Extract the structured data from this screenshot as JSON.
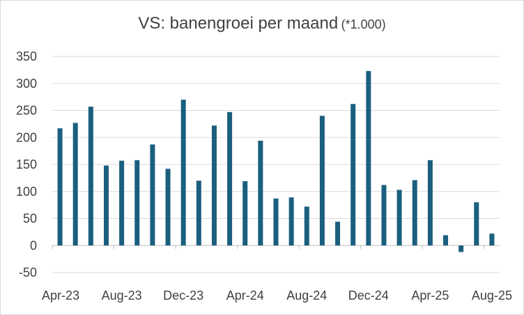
{
  "chart_data": {
    "type": "bar",
    "title": "VS: banengroei per maand",
    "subtitle": "(*1.000)",
    "xlabel": "",
    "ylabel": "",
    "ylim": [
      -50,
      350
    ],
    "yticks": [
      -50,
      0,
      50,
      100,
      150,
      200,
      250,
      300,
      350
    ],
    "grid": true,
    "legend": "none",
    "bar_color": "#1b5f7e",
    "categories": [
      "Apr-23",
      "May-23",
      "Jun-23",
      "Jul-23",
      "Aug-23",
      "Sep-23",
      "Oct-23",
      "Nov-23",
      "Dec-23",
      "Jan-24",
      "Feb-24",
      "Mar-24",
      "Apr-24",
      "May-24",
      "Jun-24",
      "Jul-24",
      "Aug-24",
      "Sep-24",
      "Oct-24",
      "Nov-24",
      "Dec-24",
      "Jan-25",
      "Feb-25",
      "Mar-25",
      "Apr-25",
      "May-25",
      "Jun-25",
      "Jul-25",
      "Aug-25"
    ],
    "tick_labels": [
      "Apr-23",
      "Aug-23",
      "Dec-23",
      "Apr-24",
      "Aug-24",
      "Dec-24",
      "Apr-25",
      "Aug-25"
    ],
    "values": [
      217,
      227,
      257,
      148,
      157,
      158,
      187,
      142,
      270,
      120,
      222,
      247,
      119,
      194,
      87,
      89,
      72,
      240,
      44,
      262,
      323,
      112,
      103,
      121,
      158,
      19,
      -12,
      80,
      22
    ]
  }
}
